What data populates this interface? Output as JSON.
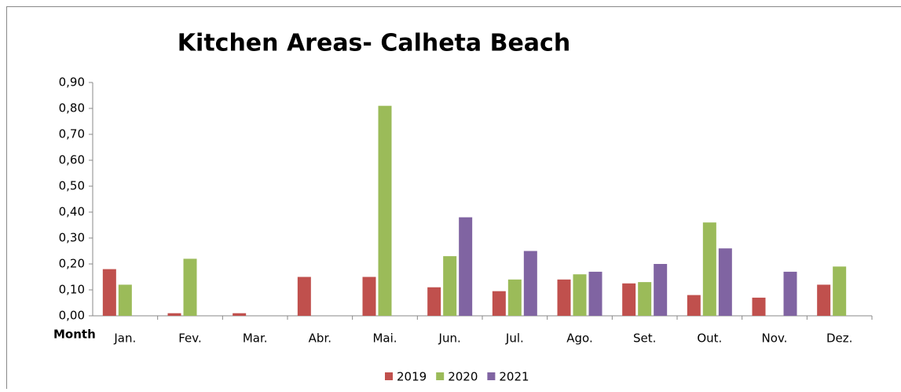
{
  "chart_data": {
    "type": "bar",
    "title": "Kitchen Areas- Calheta Beach",
    "x_label": "Month",
    "categories": [
      "Jan.",
      "Fev.",
      "Mar.",
      "Abr.",
      "Mai.",
      "Jun.",
      "Jul.",
      "Ago.",
      "Set.",
      "Out.",
      "Nov.",
      "Dez."
    ],
    "series": [
      {
        "name": "2019",
        "color": "#c0504d",
        "values": [
          0.18,
          0.01,
          0.01,
          0.15,
          0.15,
          0.11,
          0.095,
          0.14,
          0.125,
          0.08,
          0.07,
          0.12
        ]
      },
      {
        "name": "2020",
        "color": "#9bbb59",
        "values": [
          0.12,
          0.22,
          null,
          null,
          0.81,
          0.23,
          0.14,
          0.16,
          0.13,
          0.36,
          null,
          0.19
        ]
      },
      {
        "name": "2021",
        "color": "#8064a2",
        "values": [
          null,
          null,
          null,
          null,
          null,
          0.38,
          0.25,
          0.17,
          0.2,
          0.26,
          0.17,
          null
        ]
      }
    ],
    "ylim": [
      0,
      0.9
    ],
    "yticks": [
      {
        "value": 0,
        "label": "0,00"
      },
      {
        "value": 0.1,
        "label": "0,10"
      },
      {
        "value": 0.2,
        "label": "0,20"
      },
      {
        "value": 0.3,
        "label": "0,30"
      },
      {
        "value": 0.4,
        "label": "0,40"
      },
      {
        "value": 0.5,
        "label": "0,50"
      },
      {
        "value": 0.6,
        "label": "0,60"
      },
      {
        "value": 0.7,
        "label": "0,70"
      },
      {
        "value": 0.8,
        "label": "0,80"
      },
      {
        "value": 0.9,
        "label": "0,90"
      }
    ],
    "legend": "bottom"
  }
}
